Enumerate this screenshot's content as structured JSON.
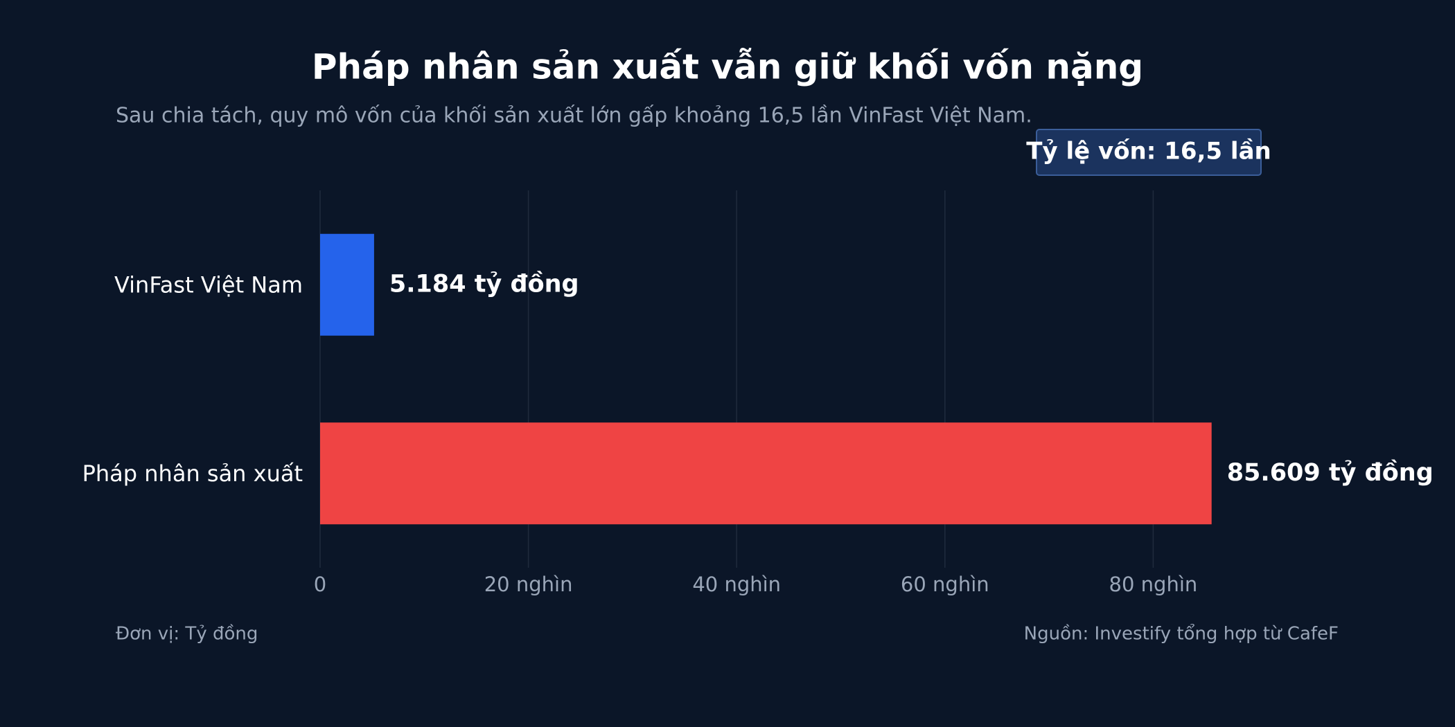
{
  "chart_data": {
    "type": "hbar",
    "title": "Pháp nhân sản xuất vẫn giữ khối vốn nặng",
    "subtitle": "Sau chia tách, quy mô vốn của khối sản xuất lớn gấp khoảng 16,5 lần VinFast Việt Nam.",
    "annotation": "Tỷ lệ vốn: 16,5 lần",
    "categories": [
      "VinFast Việt Nam",
      "Pháp nhân sản xuất"
    ],
    "values": [
      5184,
      85609
    ],
    "value_labels": [
      "5.184 tỷ đồng",
      "85.609 tỷ đồng"
    ],
    "colors": [
      "#2563eb",
      "#ef4444"
    ],
    "xlim": [
      0,
      100000
    ],
    "xticks": [
      0,
      {
        "value": 20000,
        "label": "20 nghìn"
      },
      {
        "value": 40000,
        "label": "40 nghìn"
      },
      {
        "value": 60000,
        "label": "60 nghìn"
      },
      {
        "value": 80000,
        "label": "80 nghìn"
      }
    ],
    "grid": true,
    "unit_note": "Đơn vị: Tỷ đồng",
    "source": "Nguồn: Investify tổng hợp từ CafeF"
  }
}
